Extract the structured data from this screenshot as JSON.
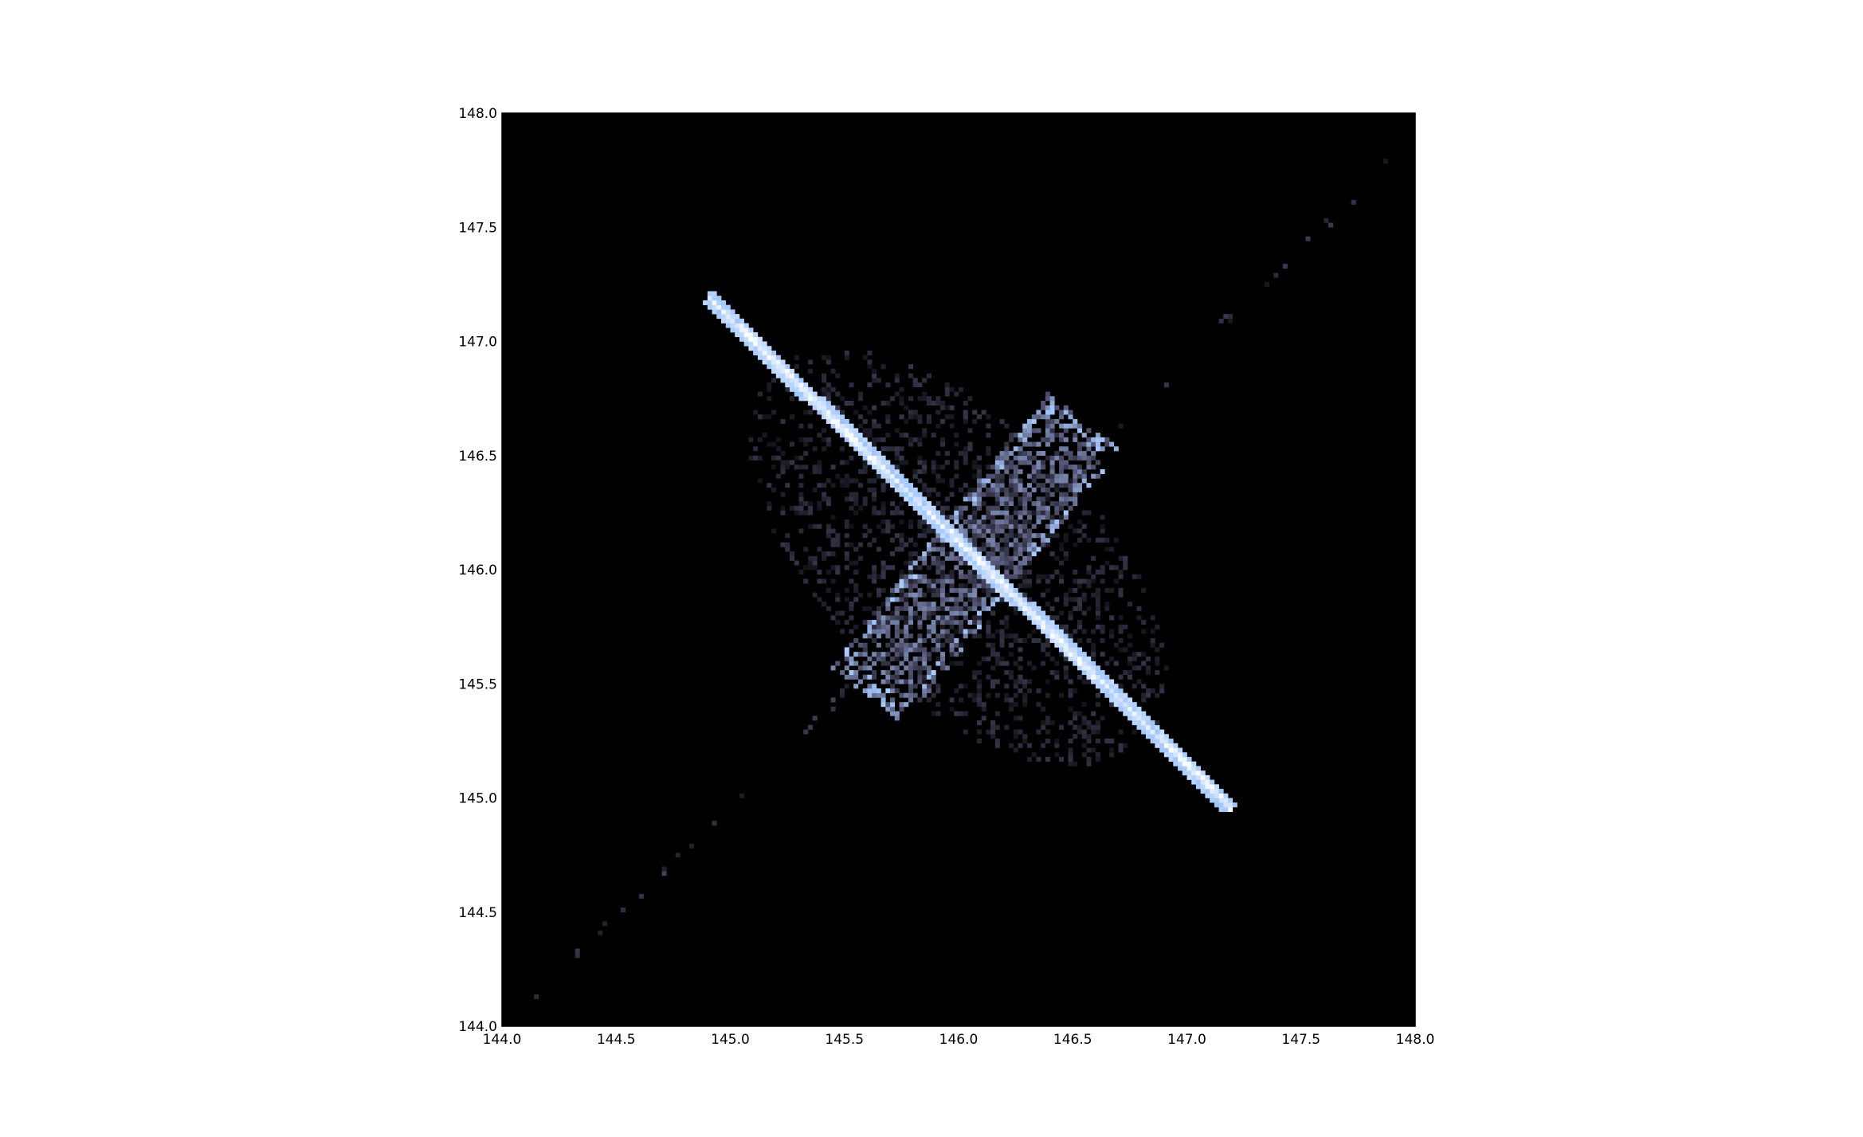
{
  "chart_data": {
    "type": "heatmap",
    "title": "",
    "xlabel": "",
    "ylabel": "",
    "xlim": [
      144.0,
      148.0
    ],
    "ylim": [
      144.0,
      148.0
    ],
    "grid": false,
    "colormap": "bone",
    "background_color": "#000000",
    "x_ticks": [
      "144.0",
      "144.5",
      "145.0",
      "145.5",
      "146.0",
      "146.5",
      "147.0",
      "147.5",
      "148.0"
    ],
    "y_ticks": [
      "144.0",
      "144.5",
      "145.0",
      "145.5",
      "146.0",
      "146.5",
      "147.0",
      "147.5",
      "148.0"
    ],
    "features": [
      {
        "name": "main-diagonal-band",
        "from": [
          144.9,
          147.2
        ],
        "to": [
          147.2,
          144.95
        ],
        "intensity": 1.0
      },
      {
        "name": "cross-band",
        "from": [
          145.6,
          145.45
        ],
        "to": [
          146.55,
          146.65
        ],
        "intensity": 0.55
      },
      {
        "name": "faint-diagonal-streak",
        "from": [
          144.0,
          144.0
        ],
        "to": [
          147.9,
          147.8
        ],
        "intensity": 0.2
      },
      {
        "name": "diffuse-lobe",
        "center": [
          146.0,
          146.05
        ],
        "extent": [
          2.3,
          2.3
        ],
        "intensity": 0.2
      }
    ]
  }
}
